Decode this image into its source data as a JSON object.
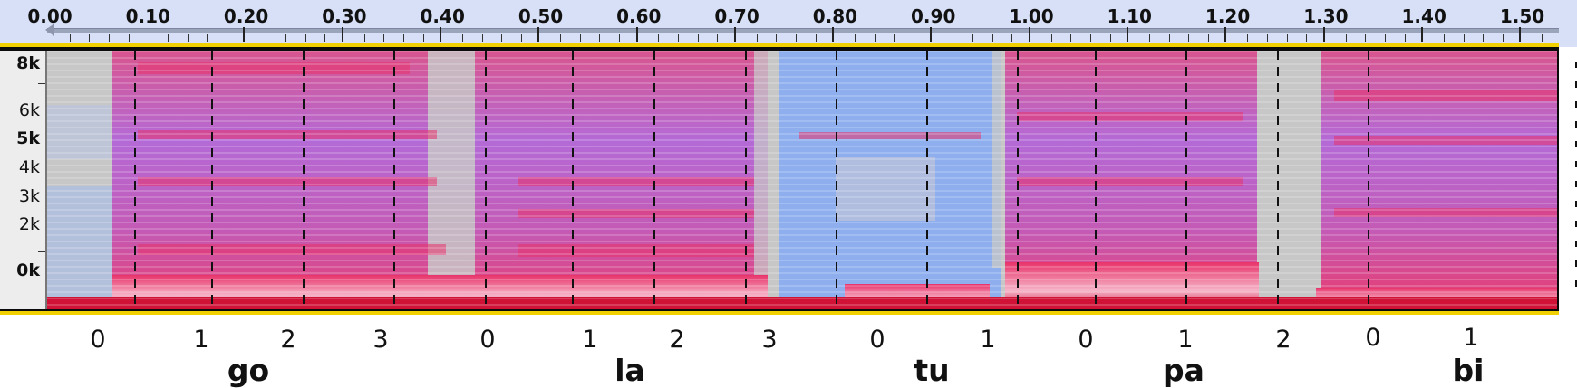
{
  "ruler": {
    "ticks": [
      "0.00",
      "0.10",
      "0.20",
      "0.30",
      "0.40",
      "0.50",
      "0.60",
      "0.70",
      "0.80",
      "0.90",
      "1.00",
      "1.10",
      "1.20",
      "1.30",
      "1.40",
      "1.50"
    ]
  },
  "freq_scale": {
    "labels": [
      "8k",
      "6k",
      "5k",
      "4k",
      "3k",
      "2k",
      "0k"
    ]
  },
  "segments": [
    {
      "syllable": "go",
      "sub": [
        "0",
        "1",
        "2",
        "3"
      ]
    },
    {
      "syllable": "la",
      "sub": [
        "0",
        "1",
        "2",
        "3"
      ]
    },
    {
      "syllable": "tu",
      "sub": [
        "0",
        "1"
      ]
    },
    {
      "syllable": "pa",
      "sub": [
        "0",
        "1",
        "2"
      ]
    },
    {
      "syllable": "bi",
      "sub": [
        "0",
        "1"
      ]
    }
  ],
  "colors": {
    "ruler_bg": "#d7e0f6",
    "spectrogram_low": "#7fa6ee",
    "spectrogram_high": "#e8336b",
    "silence": "#c7c7c7",
    "highlight": "#f0d000"
  }
}
